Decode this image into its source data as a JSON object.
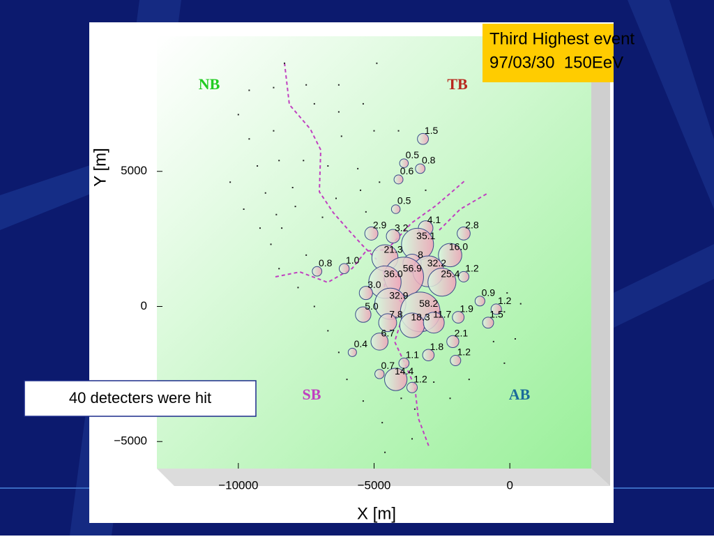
{
  "chart_data": {
    "type": "bubble",
    "xlabel": "X [m]",
    "ylabel": "Y [m]",
    "xlim": [
      -13000,
      3000
    ],
    "ylim": [
      -6000,
      10000
    ],
    "xticks": [
      {
        "value": -10000,
        "label": "−10000"
      },
      {
        "value": -5000,
        "label": "−5000"
      },
      0
    ],
    "yticks": [
      {
        "value": -5000,
        "label": "−5000"
      },
      0,
      5000
    ],
    "points": {
      "x": [
        -3200,
        -3900,
        -3300,
        -4100,
        -4200,
        -3100,
        -5100,
        -4300,
        -3400,
        -1700,
        -4600,
        -2200,
        -3600,
        -3000,
        -3900,
        -4600,
        -2500,
        -1700,
        -6100,
        -7100,
        -5300,
        -4400,
        -3300,
        -5400,
        -1100,
        -500,
        -1900,
        -800,
        -4500,
        -3600,
        -2800,
        -4800,
        -2100,
        -5800,
        -3000,
        -2000,
        -3900,
        -4800,
        -4200,
        -3600
      ],
      "y": [
        6200,
        5300,
        5100,
        4700,
        3600,
        2900,
        2700,
        2600,
        2300,
        2700,
        1800,
        1900,
        1600,
        1300,
        1100,
        900,
        900,
        1100,
        1400,
        1300,
        500,
        100,
        -200,
        -300,
        200,
        -100,
        -400,
        -600,
        -600,
        -700,
        -600,
        -1300,
        -1300,
        -1700,
        -1800,
        -2000,
        -2100,
        -2500,
        -2700,
        -3000
      ],
      "values": [
        1.5,
        0.5,
        0.8,
        0.6,
        0.5,
        4.1,
        2.9,
        3.2,
        35.1,
        2.8,
        21.3,
        16.0,
        8,
        32.2,
        56.9,
        36.0,
        25.4,
        1.2,
        1.0,
        0.8,
        3.0,
        32.9,
        58.2,
        5.0,
        0.9,
        1.2,
        1.9,
        1.5,
        7.8,
        18.3,
        11.7,
        6.7,
        2.1,
        0.4,
        1.8,
        1.2,
        1.1,
        0.7,
        14.4,
        1.2
      ],
      "value_labels": [
        "1.5",
        "0.5",
        "0.8",
        "0.6",
        "0.5",
        "4.1",
        "2.9",
        "3.2",
        "35.1",
        "2.8",
        "21.3",
        "16.0",
        "8",
        "32.2",
        "56.9",
        "36.0",
        "25.4",
        "1.2",
        "1.0",
        "0.8",
        "3.0",
        "32.9",
        "58.2",
        "5.0",
        "0.9",
        "1.2",
        "1.9",
        "1.5",
        "7.8",
        "18.3",
        "11.7",
        "6.7",
        "2.1",
        "0.4",
        "1.8",
        "1.2",
        "1.1",
        "0.7",
        "14.4",
        "1.2"
      ]
    },
    "detectors": {
      "x": [
        -8300,
        -9600,
        -8700,
        -7500,
        -6300,
        -4900,
        -5400,
        -6300,
        -7200,
        -10000,
        -9600,
        -8700,
        -6200,
        -5000,
        -4100,
        -9300,
        -8500,
        -7600,
        -6700,
        -5600,
        -10300,
        -9000,
        -8000,
        -6400,
        -5500,
        -4800,
        -3100,
        -9800,
        -8600,
        -7900,
        -6900,
        -5300,
        -9200,
        -8400,
        -8800,
        -7500,
        -8500,
        -7800,
        -7200,
        -6700,
        -6300,
        -6000,
        -5400,
        -4700,
        -4000,
        -3500,
        -3600,
        -4600,
        -2800,
        -2200,
        -1500,
        -200,
        -200,
        400,
        -100,
        200,
        -600
      ],
      "y": [
        9000,
        8000,
        8100,
        8200,
        8200,
        9000,
        7500,
        7200,
        7500,
        7100,
        6200,
        6500,
        6300,
        6500,
        6500,
        5200,
        5400,
        5400,
        5200,
        5100,
        4600,
        4200,
        4400,
        4000,
        4300,
        4600,
        4300,
        3600,
        3400,
        3700,
        3300,
        3500,
        2900,
        2900,
        2300,
        1900,
        1400,
        700,
        0,
        -900,
        -1700,
        -2700,
        -3500,
        -4300,
        -3400,
        -3800,
        -4900,
        -5400,
        -2800,
        -3400,
        -2700,
        -2100,
        -200,
        100,
        500,
        -1200,
        -1300
      ]
    },
    "annotations": [
      "NB",
      "TB",
      "SB",
      "AB"
    ]
  },
  "info": {
    "lines": [
      "Third Highest event",
      "97/03/30  150EeV"
    ],
    "hit_note": "40 detecters were hit"
  }
}
